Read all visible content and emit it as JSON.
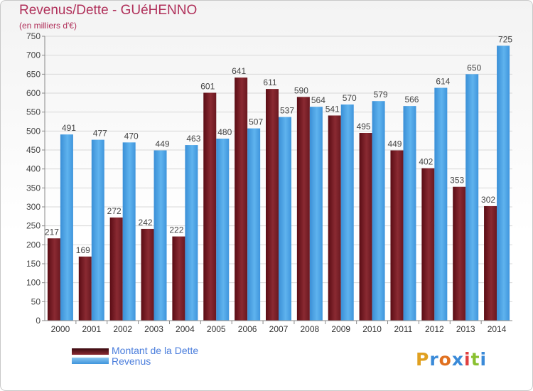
{
  "header": {
    "title": "Revenus/Dette - GUéHENNO",
    "subtitle": "(en milliers d'€)"
  },
  "logo": {
    "text": "Proxiti",
    "colors": [
      "#e0a020",
      "#3a8ad8",
      "#e07020",
      "#3a8ad8",
      "#e04040",
      "#8ac030",
      "#3a8ad8"
    ]
  },
  "chart_data": {
    "type": "bar",
    "categories": [
      "2000",
      "2001",
      "2002",
      "2003",
      "2004",
      "2005",
      "2006",
      "2007",
      "2008",
      "2009",
      "2010",
      "2011",
      "2012",
      "2013",
      "2014"
    ],
    "series": [
      {
        "name": "Montant de la Dette",
        "color": "#7a1f26",
        "values": [
          217,
          169,
          272,
          242,
          222,
          601,
          641,
          611,
          590,
          541,
          495,
          449,
          402,
          353,
          302
        ]
      },
      {
        "name": "Revenus",
        "color": "#4aa3e6",
        "values": [
          491,
          477,
          470,
          449,
          463,
          480,
          507,
          537,
          564,
          570,
          579,
          566,
          614,
          650,
          725
        ]
      }
    ],
    "data_labels": [
      [
        "217",
        "169",
        "272",
        "242",
        "222",
        "601",
        "641",
        "611",
        "590",
        "541",
        "495",
        "449",
        "402",
        "353",
        "302"
      ],
      [
        "491",
        "477",
        "470",
        "449",
        "463",
        "480",
        "507",
        "537",
        "564",
        "570",
        "579",
        "566",
        "614",
        "650",
        "725"
      ]
    ],
    "yticks": [
      0,
      50,
      100,
      150,
      200,
      250,
      300,
      350,
      400,
      450,
      500,
      550,
      600,
      650,
      700,
      750
    ],
    "ylim": [
      0,
      750
    ],
    "grid": true,
    "legend_position": "bottom-left"
  }
}
